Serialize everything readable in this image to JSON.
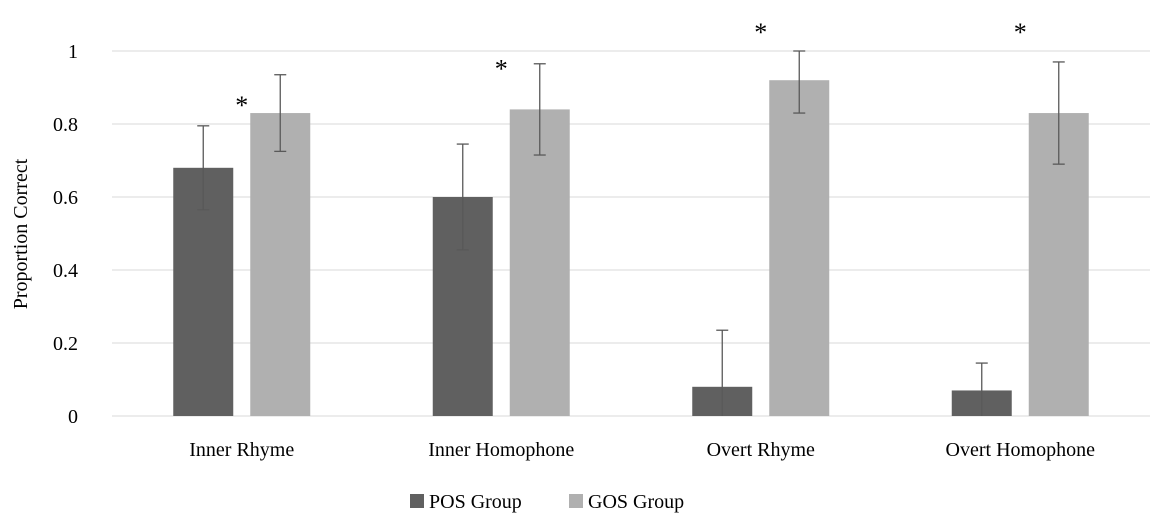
{
  "chart_data": {
    "type": "bar",
    "title": "",
    "xlabel": "",
    "ylabel": "Proportion Correct",
    "ylim": [
      0,
      1
    ],
    "yticks": [
      0,
      0.2,
      0.4,
      0.6,
      0.8,
      1
    ],
    "ytick_labels": [
      "0",
      "0.2",
      "0.4",
      "0.6",
      "0.8",
      "1"
    ],
    "grid": true,
    "legend_position": "bottom",
    "categories": [
      "Inner Rhyme",
      "Inner Homophone",
      "Overt Rhyme",
      "Overt Homophone"
    ],
    "series": [
      {
        "name": "POS Group",
        "color": "#606060",
        "values": [
          0.68,
          0.6,
          0.08,
          0.07
        ],
        "error_low": [
          0.565,
          0.455,
          0.0,
          0.0
        ],
        "error_high": [
          0.795,
          0.745,
          0.235,
          0.145
        ]
      },
      {
        "name": "GOS Group",
        "color": "#b0b0b0",
        "values": [
          0.83,
          0.84,
          0.92,
          0.83
        ],
        "error_low": [
          0.725,
          0.715,
          0.83,
          0.69
        ],
        "error_high": [
          0.935,
          0.965,
          1.0,
          0.97
        ]
      }
    ],
    "annotations": [
      {
        "category": "Inner Rhyme",
        "text": "*",
        "y": 0.86
      },
      {
        "category": "Inner Homophone",
        "text": "*",
        "y": 0.96
      },
      {
        "category": "Overt Rhyme",
        "text": "*",
        "y": 1.06
      },
      {
        "category": "Overt Homophone",
        "text": "*",
        "y": 1.06
      }
    ]
  }
}
